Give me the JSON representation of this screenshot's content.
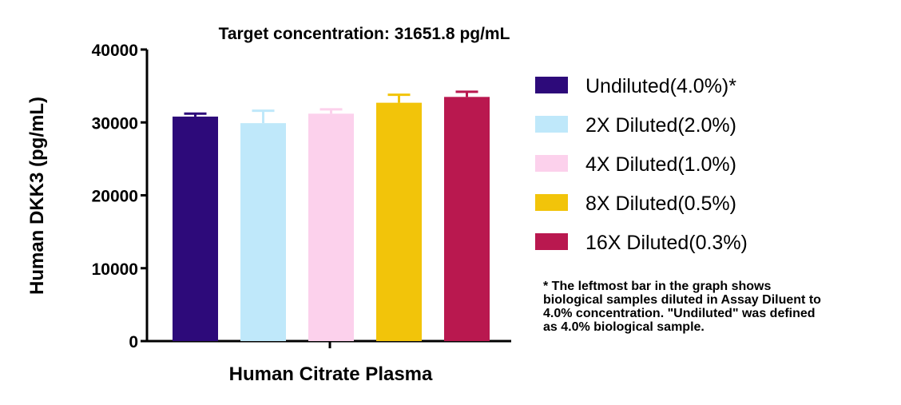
{
  "chart_data": {
    "type": "bar",
    "title": "Target concentration: 31651.8 pg/mL",
    "xlabel": "Human Citrate Plasma",
    "ylabel": "Human DKK3 (pg/mL)",
    "ylim": [
      0,
      40000
    ],
    "yticks": [
      "0",
      "10000",
      "20000",
      "30000",
      "40000"
    ],
    "grid": false,
    "legend_position": "right",
    "series": [
      {
        "name": "Undiluted(4.0%)*",
        "value": 30800,
        "error": 400,
        "color": "#2d0a7a"
      },
      {
        "name": "2X Diluted(2.0%)",
        "value": 29900,
        "error": 1700,
        "color": "#bfe8fa"
      },
      {
        "name": "4X Diluted(1.0%)",
        "value": 31200,
        "error": 600,
        "color": "#fcd1ec"
      },
      {
        "name": "8X Diluted(0.5%)",
        "value": 32700,
        "error": 1100,
        "color": "#f2c40a"
      },
      {
        "name": "16X Diluted(0.3%)",
        "value": 33500,
        "error": 700,
        "color": "#b9184f"
      }
    ]
  },
  "footnote": "* The leftmost bar in the graph shows\nbiological samples diluted in Assay Diluent to\n4.0% concentration. \"Undiluted\" was defined\nas 4.0% biological sample."
}
